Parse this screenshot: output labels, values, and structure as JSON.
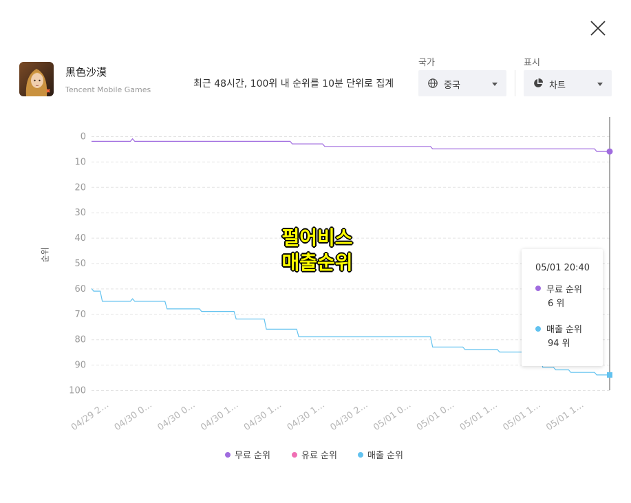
{
  "app": {
    "title": "黑色沙漠",
    "publisher": "Tencent Mobile Games",
    "icon": "game-character-icon"
  },
  "description": "최근 48시간, 100위 내 순위를 10분 단위로 집계",
  "controls": {
    "country": {
      "label": "국가",
      "value": "중국",
      "icon": "globe-icon"
    },
    "display": {
      "label": "표시",
      "value": "차트",
      "icon": "pie-chart-icon"
    }
  },
  "overlay": {
    "line1": "펄어비스",
    "line2": "매출순위"
  },
  "tooltip": {
    "time": "05/01 20:40",
    "free_label": "무료 순위",
    "free_value": "6 위",
    "grossing_label": "매출 순위",
    "grossing_value": "94 위"
  },
  "legend": {
    "free": "무료 순위",
    "paid": "유료 순위",
    "grossing": "매출 순위"
  },
  "colors": {
    "free": "#a06cdf",
    "paid": "#f06fb4",
    "grossing": "#62c2ef",
    "accent_bg": "#f1f2f6"
  },
  "chart_data": {
    "type": "line",
    "ylabel": "순위",
    "ylim": [
      0,
      100
    ],
    "y_inverted": true,
    "yticks": [
      0,
      10,
      20,
      30,
      40,
      50,
      60,
      70,
      80,
      90,
      100
    ],
    "xtick_labels": [
      "04/29 2…",
      "04/30 0…",
      "04/30 0…",
      "04/30 1…",
      "04/30 1…",
      "04/30 1…",
      "04/30 2…",
      "05/01 0…",
      "05/01 0…",
      "05/01 1…",
      "05/01 1…",
      "05/01 1…"
    ],
    "x_range": [
      0,
      12
    ],
    "series": [
      {
        "name": "무료 순위",
        "color": "#a06cdf",
        "points": [
          [
            0,
            2
          ],
          [
            0.9,
            2
          ],
          [
            0.95,
            1
          ],
          [
            1.0,
            2
          ],
          [
            4.6,
            2
          ],
          [
            4.65,
            3
          ],
          [
            5.35,
            3
          ],
          [
            5.4,
            4
          ],
          [
            7.85,
            4
          ],
          [
            7.9,
            5
          ],
          [
            11.65,
            5
          ],
          [
            11.7,
            6
          ],
          [
            12,
            6
          ]
        ]
      },
      {
        "name": "매출 순위",
        "color": "#62c2ef",
        "points": [
          [
            0,
            60
          ],
          [
            0.05,
            61
          ],
          [
            0.2,
            61
          ],
          [
            0.25,
            65
          ],
          [
            0.9,
            65
          ],
          [
            0.95,
            64
          ],
          [
            1.0,
            65
          ],
          [
            1.7,
            65
          ],
          [
            1.75,
            68
          ],
          [
            2.5,
            68
          ],
          [
            2.55,
            69
          ],
          [
            3.3,
            69
          ],
          [
            3.35,
            72
          ],
          [
            4.0,
            72
          ],
          [
            4.05,
            76
          ],
          [
            4.75,
            76
          ],
          [
            4.8,
            79
          ],
          [
            7.85,
            79
          ],
          [
            7.9,
            83
          ],
          [
            8.6,
            83
          ],
          [
            8.65,
            84
          ],
          [
            9.4,
            84
          ],
          [
            9.45,
            85
          ],
          [
            10.4,
            85
          ],
          [
            10.45,
            91
          ],
          [
            10.7,
            91
          ],
          [
            10.75,
            92
          ],
          [
            11.05,
            92
          ],
          [
            11.1,
            93
          ],
          [
            11.65,
            93
          ],
          [
            11.7,
            94
          ],
          [
            12,
            94
          ]
        ]
      }
    ],
    "crosshair_x": 12
  }
}
